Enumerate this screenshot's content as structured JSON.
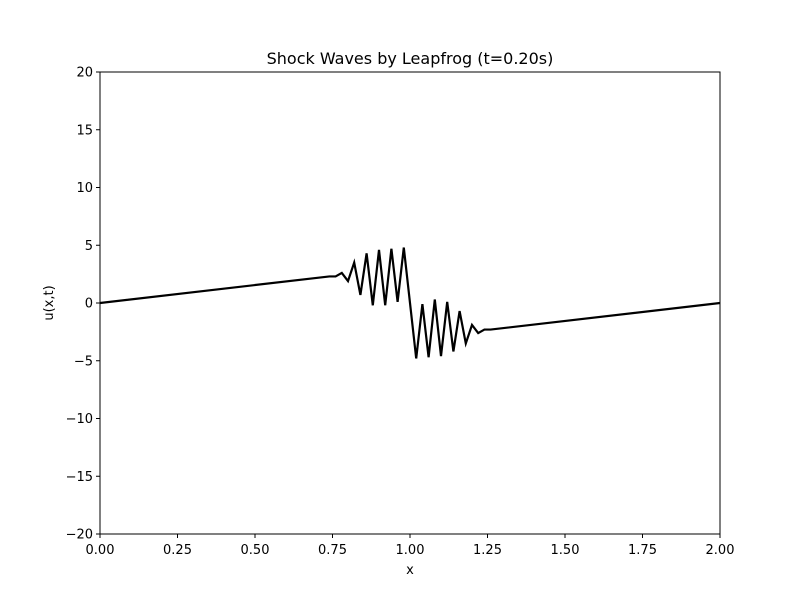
{
  "chart_data": {
    "type": "line",
    "title": "Shock Waves by Leapfrog (t=0.20s)",
    "xlabel": "x",
    "ylabel": "u(x,t)",
    "xlim": [
      0,
      2
    ],
    "ylim": [
      -20,
      20
    ],
    "xticks": [
      0,
      0.25,
      0.5,
      0.75,
      1.0,
      1.25,
      1.5,
      1.75,
      2.0
    ],
    "xtick_labels": [
      "0.00",
      "0.25",
      "0.50",
      "0.75",
      "1.00",
      "1.25",
      "1.50",
      "1.75",
      "2.00"
    ],
    "yticks": [
      -20,
      -15,
      -10,
      -5,
      0,
      5,
      10,
      15,
      20
    ],
    "ytick_labels": [
      "−20",
      "−15",
      "−10",
      "−5",
      "0",
      "5",
      "10",
      "15",
      "20"
    ],
    "grid": false,
    "series": [
      {
        "color": "#000000",
        "x": [
          0.0,
          0.74,
          0.76,
          0.78,
          0.8,
          0.82,
          0.84,
          0.86,
          0.88,
          0.9,
          0.92,
          0.94,
          0.96,
          0.98,
          1.0,
          1.02,
          1.04,
          1.06,
          1.08,
          1.1,
          1.12,
          1.14,
          1.16,
          1.18,
          1.2,
          1.22,
          1.24,
          1.26,
          2.0
        ],
        "y": [
          0.0,
          2.3,
          2.3,
          2.6,
          1.9,
          3.5,
          0.7,
          4.3,
          -0.2,
          4.6,
          -0.2,
          4.7,
          0.1,
          4.8,
          0.0,
          -4.8,
          -0.1,
          -4.7,
          0.3,
          -4.6,
          0.1,
          -4.2,
          -0.7,
          -3.5,
          -1.9,
          -2.6,
          -2.3,
          -2.3,
          0.0
        ]
      }
    ]
  }
}
